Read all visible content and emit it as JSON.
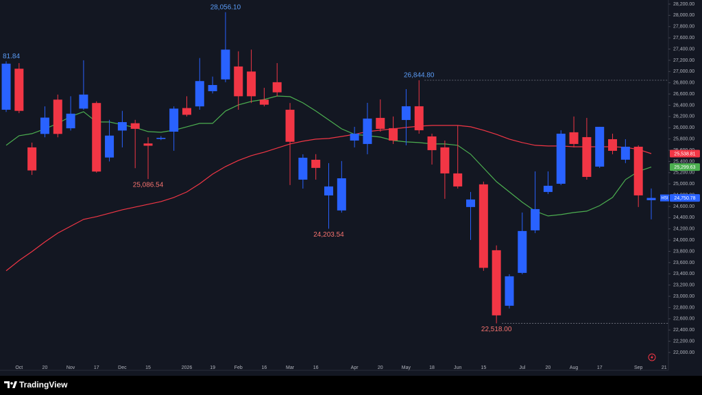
{
  "chart_data": {
    "type": "candlestick",
    "symbol": "HSI",
    "last_label": "24,750.78",
    "up_color": "#2962ff",
    "down_color": "#f23645",
    "categories": [
      null,
      "Oct",
      null,
      "20",
      null,
      "Nov",
      null,
      "17",
      null,
      "Dec",
      null,
      "15",
      null,
      null,
      "2026",
      null,
      "19",
      null,
      "Feb",
      null,
      "16",
      null,
      "Mar",
      null,
      "16",
      null,
      null,
      "Apr",
      null,
      "20",
      null,
      "May",
      null,
      "18",
      null,
      "Jun",
      null,
      "15",
      null,
      null,
      "Jul",
      null,
      "20",
      null,
      "Aug",
      null,
      "17",
      null,
      null,
      "Sep",
      null,
      "21"
    ],
    "open": [
      26320,
      27050,
      25650,
      25890,
      26500,
      25990,
      26340,
      26440,
      25470,
      25950,
      26080,
      25720,
      25800,
      25930,
      26350,
      26380,
      26650,
      26860,
      27090,
      27000,
      26500,
      26810,
      26320,
      25076,
      25430,
      24795,
      24528,
      25772,
      25711,
      26175,
      25992,
      26138,
      26382,
      25845,
      25650,
      25187,
      24589,
      24992,
      23820,
      22832,
      23417,
      24174,
      24857,
      25003,
      25919,
      25833,
      25308,
      25796,
      25431,
      25662,
      24711,
      null
    ],
    "high": [
      27181.84,
      27150,
      25735,
      26380,
      26590,
      26560,
      27200,
      26470,
      26140,
      26300,
      26140,
      25830,
      25850,
      26380,
      26560,
      27240,
      26910,
      28056.1,
      27360,
      27390,
      26710,
      27150,
      26440,
      25527,
      25530,
      25370,
      25407,
      26016,
      26443,
      26504,
      26200,
      26687,
      26844.8,
      25894,
      25772,
      26041,
      24857,
      25040,
      23906,
      23393,
      24491,
      25223,
      25223,
      25955,
      26200,
      26175,
      26016,
      25894,
      25796,
      25687,
      24918,
      null
    ],
    "low": [
      26280,
      26260,
      25160,
      25830,
      25830,
      25950,
      26320,
      25200,
      25400,
      25650,
      25280,
      25086.54,
      25780,
      25590,
      26200,
      26320,
      26610,
      26810,
      26320,
      26440,
      26380,
      26560,
      24980,
      24917,
      25076,
      24203.54,
      24490,
      25650,
      25528,
      25930,
      25711,
      25687,
      25894,
      25345,
      24735,
      24918,
      24003,
      23454,
      22518,
      22783,
      23393,
      24125,
      24820,
      24979,
      25650,
      25076,
      25284,
      25528,
      25370,
      24589,
      24370,
      null
    ],
    "close": [
      27140,
      26300,
      25240,
      26180,
      25890,
      26250,
      26590,
      25220,
      25860,
      26100,
      25980,
      25680,
      25820,
      26340,
      26230,
      26830,
      26760,
      27390,
      26560,
      26560,
      26410,
      26630,
      25750,
      25466,
      25285,
      24955,
      25100,
      25894,
      26163,
      25980,
      25772,
      26382,
      25955,
      25601,
      25187,
      24955,
      24723,
      23507,
      22661,
      23356,
      24162,
      24552,
      24967,
      25894,
      25711,
      25125,
      26016,
      25589,
      25662,
      24796,
      24750.78,
      null
    ],
    "series": [
      {
        "color": "#f23645",
        "tag": "25,538.81",
        "values": [
          23454,
          23637,
          23796,
          23967,
          24125,
          24247,
          24369,
          24418,
          24479,
          24540,
          24589,
          24638,
          24686,
          24760,
          24857,
          25004,
          25174,
          25309,
          25418,
          25504,
          25565,
          25638,
          25711,
          25760,
          25797,
          25809,
          25845,
          25882,
          25931,
          25955,
          25980,
          26004,
          26028,
          26041,
          26041,
          26041,
          26016,
          25955,
          25882,
          25797,
          25736,
          25687,
          25675,
          25675,
          25662,
          25662,
          25662,
          25662,
          25650,
          25614,
          25538.81,
          null
        ]
      },
      {
        "color": "#4caf50",
        "tag": "25,299.63",
        "values": [
          25687,
          25858,
          25894,
          25980,
          26077,
          26199,
          26285,
          26102,
          26102,
          26053,
          26004,
          25931,
          25919,
          25955,
          26016,
          26077,
          26077,
          26297,
          26407,
          26468,
          26504,
          26565,
          26553,
          26443,
          26297,
          26138,
          25980,
          25882,
          25858,
          25833,
          25772,
          25748,
          25736,
          25711,
          25711,
          25687,
          25528,
          25284,
          25040,
          24857,
          24674,
          24516,
          24430,
          24455,
          24491,
          24516,
          24613,
          24760,
          25077,
          25223,
          25299.63,
          null
        ]
      }
    ],
    "annotations": [
      {
        "index": 0,
        "at": "high",
        "text": "81.84"
      },
      {
        "index": 17,
        "at": "high",
        "text": "28,056.10"
      },
      {
        "index": 32,
        "at": "high",
        "text": "26,844.80",
        "line": true
      },
      {
        "index": 11,
        "at": "low",
        "text": "25,086.54"
      },
      {
        "index": 25,
        "at": "low",
        "text": "24,203.54"
      },
      {
        "index": 38,
        "at": "low",
        "text": "22,518.00",
        "line": true
      }
    ],
    "ylim": [
      21683,
      28273
    ],
    "yticks": [
      {
        "value": 28200,
        "label": "28,200.00"
      },
      {
        "value": 28000,
        "label": "28,000.00"
      },
      {
        "value": 27800,
        "label": "27,800.00"
      },
      {
        "value": 27600,
        "label": "27,600.00"
      },
      {
        "value": 27400,
        "label": "27,400.00"
      },
      {
        "value": 27200,
        "label": "27,200.00"
      },
      {
        "value": 27000,
        "label": "27,000.00"
      },
      {
        "value": 26800,
        "label": "26,800.00"
      },
      {
        "value": 26600,
        "label": "26,600.00"
      },
      {
        "value": 26400,
        "label": "26,400.00"
      },
      {
        "value": 26200,
        "label": "26,200.00"
      },
      {
        "value": 26000,
        "label": "26,000.00"
      },
      {
        "value": 25800,
        "label": "25,800.00"
      },
      {
        "value": 25600,
        "label": "25,600.00"
      },
      {
        "value": 25400,
        "label": "25,400.00"
      },
      {
        "value": 25200,
        "label": "25,200.00"
      },
      {
        "value": 25000,
        "label": "25,000.00"
      },
      {
        "value": 24800,
        "label": "24,800.00"
      },
      {
        "value": 24600,
        "label": "24,600.00"
      },
      {
        "value": 24400,
        "label": "24,400.00"
      },
      {
        "value": 24200,
        "label": "24,200.00"
      },
      {
        "value": 24000,
        "label": "24,000.00"
      },
      {
        "value": 23800,
        "label": "23,800.00"
      },
      {
        "value": 23600,
        "label": "23,600.00"
      },
      {
        "value": 23400,
        "label": "23,400.00"
      },
      {
        "value": 23200,
        "label": "23,200.00"
      },
      {
        "value": 23000,
        "label": "23,000.00"
      },
      {
        "value": 22800,
        "label": "22,800.00"
      },
      {
        "value": 22600,
        "label": "22,600.00"
      },
      {
        "value": 22400,
        "label": "22,400.00"
      },
      {
        "value": 22200,
        "label": "22,200.00"
      },
      {
        "value": 22000,
        "label": "22,000.00"
      }
    ],
    "grid": false
  },
  "footer": {
    "brand": "TradingView"
  }
}
